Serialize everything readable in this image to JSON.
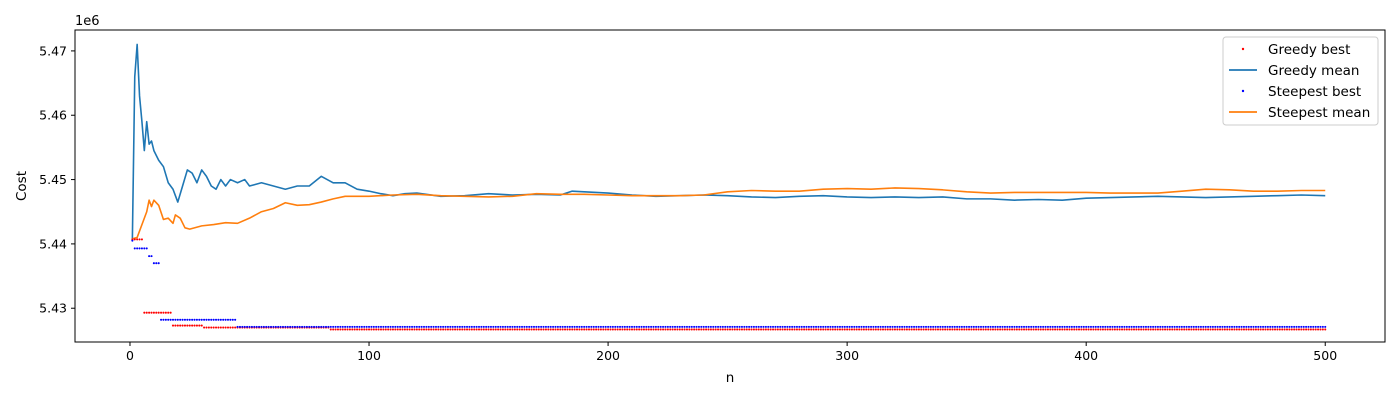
{
  "chart_data": {
    "type": "line",
    "title": "",
    "xlabel": "n",
    "ylabel": "Cost",
    "y_offset_label": "1e6",
    "xlim": [
      -23,
      525
    ],
    "ylim": [
      5424750,
      5473250
    ],
    "xticks": [
      0,
      100,
      200,
      300,
      400,
      500
    ],
    "xtick_labels": [
      "0",
      "100",
      "200",
      "300",
      "400",
      "500"
    ],
    "yticks": [
      5430000,
      5440000,
      5450000,
      5460000,
      5470000
    ],
    "ytick_labels": [
      "5.43",
      "5.44",
      "5.45",
      "5.46",
      "5.47"
    ],
    "grid": false,
    "legend_position": "top-right",
    "colors": {
      "greedy_best": "#ff0000",
      "greedy_mean": "#1f77b4",
      "steepest_best": "#0000ff",
      "steepest_mean": "#ff7f0e"
    },
    "series": [
      {
        "name": "Greedy best",
        "style": "points",
        "color": "#ff0000",
        "steps": [
          [
            1,
            5440700
          ],
          [
            6,
            5429300
          ],
          [
            18,
            5427300
          ],
          [
            31,
            5427000
          ],
          [
            84,
            5426700
          ],
          [
            500,
            5426700
          ]
        ]
      },
      {
        "name": "Greedy mean",
        "style": "line",
        "color": "#1f77b4",
        "points": [
          [
            1,
            5440700
          ],
          [
            2,
            5466000
          ],
          [
            3,
            5471000
          ],
          [
            4,
            5463000
          ],
          [
            5,
            5459000
          ],
          [
            6,
            5454500
          ],
          [
            7,
            5459000
          ],
          [
            8,
            5455500
          ],
          [
            9,
            5456000
          ],
          [
            10,
            5454500
          ],
          [
            12,
            5453000
          ],
          [
            14,
            5452000
          ],
          [
            16,
            5449500
          ],
          [
            18,
            5448500
          ],
          [
            20,
            5446500
          ],
          [
            22,
            5449000
          ],
          [
            24,
            5451500
          ],
          [
            26,
            5451000
          ],
          [
            28,
            5449500
          ],
          [
            30,
            5451500
          ],
          [
            32,
            5450500
          ],
          [
            34,
            5449000
          ],
          [
            36,
            5448500
          ],
          [
            38,
            5450000
          ],
          [
            40,
            5449000
          ],
          [
            42,
            5450000
          ],
          [
            45,
            5449500
          ],
          [
            48,
            5450000
          ],
          [
            50,
            5449000
          ],
          [
            55,
            5449500
          ],
          [
            60,
            5449000
          ],
          [
            65,
            5448500
          ],
          [
            70,
            5449000
          ],
          [
            75,
            5449000
          ],
          [
            80,
            5450500
          ],
          [
            85,
            5449500
          ],
          [
            90,
            5449500
          ],
          [
            95,
            5448500
          ],
          [
            100,
            5448200
          ],
          [
            105,
            5447800
          ],
          [
            110,
            5447500
          ],
          [
            115,
            5447800
          ],
          [
            120,
            5447900
          ],
          [
            130,
            5447400
          ],
          [
            140,
            5447500
          ],
          [
            150,
            5447800
          ],
          [
            160,
            5447600
          ],
          [
            170,
            5447700
          ],
          [
            180,
            5447600
          ],
          [
            185,
            5448200
          ],
          [
            190,
            5448100
          ],
          [
            200,
            5447900
          ],
          [
            210,
            5447600
          ],
          [
            220,
            5447400
          ],
          [
            230,
            5447500
          ],
          [
            240,
            5447600
          ],
          [
            250,
            5447500
          ],
          [
            260,
            5447300
          ],
          [
            270,
            5447200
          ],
          [
            280,
            5447400
          ],
          [
            290,
            5447500
          ],
          [
            300,
            5447300
          ],
          [
            310,
            5447200
          ],
          [
            320,
            5447300
          ],
          [
            330,
            5447200
          ],
          [
            340,
            5447300
          ],
          [
            350,
            5447000
          ],
          [
            360,
            5447000
          ],
          [
            370,
            5446800
          ],
          [
            380,
            5446900
          ],
          [
            390,
            5446800
          ],
          [
            400,
            5447100
          ],
          [
            410,
            5447200
          ],
          [
            420,
            5447300
          ],
          [
            430,
            5447400
          ],
          [
            440,
            5447300
          ],
          [
            450,
            5447200
          ],
          [
            460,
            5447300
          ],
          [
            470,
            5447400
          ],
          [
            480,
            5447500
          ],
          [
            490,
            5447600
          ],
          [
            500,
            5447500
          ]
        ]
      },
      {
        "name": "Steepest best",
        "style": "points",
        "color": "#0000ff",
        "steps": [
          [
            1,
            5440500
          ],
          [
            2,
            5439300
          ],
          [
            8,
            5438100
          ],
          [
            10,
            5437000
          ],
          [
            13,
            5437000
          ],
          [
            13,
            5428200
          ],
          [
            45,
            5427100
          ],
          [
            500,
            5427100
          ]
        ]
      },
      {
        "name": "Steepest mean",
        "style": "line",
        "color": "#ff7f0e",
        "points": [
          [
            1,
            5440800
          ],
          [
            3,
            5441000
          ],
          [
            5,
            5443000
          ],
          [
            7,
            5445000
          ],
          [
            8,
            5446800
          ],
          [
            9,
            5445800
          ],
          [
            10,
            5446800
          ],
          [
            12,
            5446000
          ],
          [
            14,
            5443800
          ],
          [
            16,
            5444000
          ],
          [
            18,
            5443200
          ],
          [
            19,
            5444500
          ],
          [
            21,
            5444000
          ],
          [
            23,
            5442500
          ],
          [
            25,
            5442300
          ],
          [
            30,
            5442800
          ],
          [
            35,
            5443000
          ],
          [
            40,
            5443300
          ],
          [
            45,
            5443200
          ],
          [
            50,
            5444000
          ],
          [
            55,
            5445000
          ],
          [
            60,
            5445500
          ],
          [
            65,
            5446400
          ],
          [
            70,
            5446000
          ],
          [
            75,
            5446100
          ],
          [
            80,
            5446500
          ],
          [
            85,
            5447000
          ],
          [
            90,
            5447400
          ],
          [
            100,
            5447400
          ],
          [
            110,
            5447600
          ],
          [
            120,
            5447700
          ],
          [
            130,
            5447500
          ],
          [
            140,
            5447400
          ],
          [
            150,
            5447300
          ],
          [
            160,
            5447400
          ],
          [
            170,
            5447800
          ],
          [
            180,
            5447700
          ],
          [
            190,
            5447700
          ],
          [
            200,
            5447600
          ],
          [
            210,
            5447500
          ],
          [
            220,
            5447500
          ],
          [
            230,
            5447500
          ],
          [
            240,
            5447600
          ],
          [
            250,
            5448100
          ],
          [
            260,
            5448300
          ],
          [
            270,
            5448200
          ],
          [
            280,
            5448200
          ],
          [
            290,
            5448500
          ],
          [
            300,
            5448600
          ],
          [
            310,
            5448500
          ],
          [
            320,
            5448700
          ],
          [
            330,
            5448600
          ],
          [
            340,
            5448400
          ],
          [
            350,
            5448100
          ],
          [
            360,
            5447900
          ],
          [
            370,
            5448000
          ],
          [
            380,
            5448000
          ],
          [
            390,
            5448000
          ],
          [
            400,
            5448000
          ],
          [
            410,
            5447900
          ],
          [
            420,
            5447900
          ],
          [
            430,
            5447900
          ],
          [
            440,
            5448200
          ],
          [
            450,
            5448500
          ],
          [
            460,
            5448400
          ],
          [
            470,
            5448200
          ],
          [
            480,
            5448200
          ],
          [
            490,
            5448300
          ],
          [
            500,
            5448300
          ]
        ]
      }
    ]
  }
}
